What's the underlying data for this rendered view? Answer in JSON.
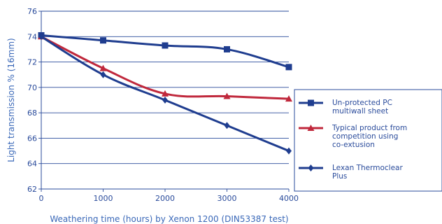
{
  "chart_data": {
    "type": "line",
    "title": "",
    "xlabel": "Weathering time (hours) by Xenon 1200 (DIN53387 test)",
    "ylabel": "Light transmission % (16mm)",
    "x": [
      0,
      1000,
      2000,
      3000,
      4000
    ],
    "xlim": [
      0,
      4000
    ],
    "ylim": [
      62,
      76
    ],
    "x_ticks": [
      "0",
      "1000",
      "2000",
      "3000",
      "4000"
    ],
    "y_ticks": [
      "62",
      "64",
      "66",
      "68",
      "70",
      "72",
      "74",
      "76"
    ],
    "grid": "horizontal",
    "legend_position": "right",
    "series": [
      {
        "name": "Un-protected PC multiwall sheet",
        "legend_lines": [
          "Un-protected PC",
          "multiwall sheet"
        ],
        "values": [
          74.1,
          73.7,
          73.3,
          73.0,
          71.6
        ],
        "color": "#1f3d8f",
        "marker": "square"
      },
      {
        "name": "Typical product from competition using co-extusion",
        "legend_lines": [
          "Typical product from",
          "competition using",
          "co-extusion"
        ],
        "values": [
          74.0,
          71.5,
          69.5,
          69.3,
          69.1
        ],
        "color": "#c0283c",
        "marker": "triangle"
      },
      {
        "name": "Lexan Thermoclear Plus",
        "legend_lines": [
          "Lexan Thermoclear",
          "Plus"
        ],
        "values": [
          74.0,
          71.0,
          69.0,
          67.0,
          65.0
        ],
        "color": "#1f3d8f",
        "marker": "diamond"
      }
    ]
  }
}
